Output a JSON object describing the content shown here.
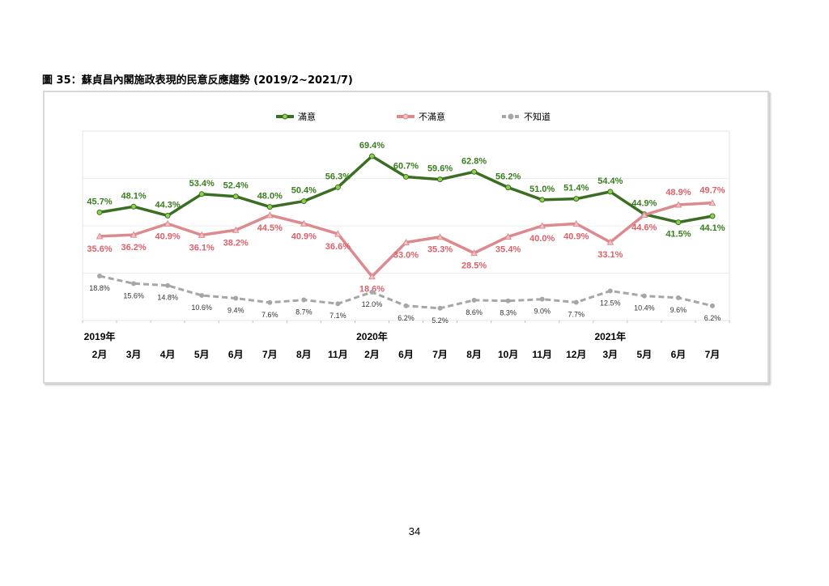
{
  "figure_title": "圖 35：蘇貞昌內閣施政表現的民意反應趨勢  (2019/2~2021/7)",
  "page_number": "34",
  "chart_data": {
    "type": "line",
    "title": "",
    "xlabel": "",
    "ylabel": "",
    "ylim": [
      0,
      80
    ],
    "grid": true,
    "legend_position": "top-center",
    "year_labels": [
      {
        "index": 0,
        "label": "2019年"
      },
      {
        "index": 8,
        "label": "2020年"
      },
      {
        "index": 15,
        "label": "2021年"
      }
    ],
    "categories": [
      "2月",
      "3月",
      "4月",
      "5月",
      "6月",
      "7月",
      "8月",
      "11月",
      "2月",
      "6月",
      "7月",
      "8月",
      "10月",
      "11月",
      "12月",
      "3月",
      "5月",
      "6月",
      "7月"
    ],
    "series": [
      {
        "name": "滿意",
        "color": "#3b6e22",
        "marker_color": "#8fd14f",
        "style": "solid",
        "values": [
          45.7,
          48.1,
          44.3,
          53.4,
          52.4,
          48.0,
          50.4,
          56.3,
          69.4,
          60.7,
          59.6,
          62.8,
          56.2,
          51.0,
          51.4,
          54.4,
          44.9,
          41.5,
          44.1
        ],
        "labels": [
          "45.7%",
          "48.1%",
          "44.3%",
          "53.4%",
          "52.4%",
          "48.0%",
          "50.4%",
          "56.3%",
          "69.4%",
          "60.7%",
          "59.6%",
          "62.8%",
          "56.2%",
          "51.0%",
          "51.4%",
          "54.4%",
          "44.9%",
          "41.5%",
          "44.1%"
        ]
      },
      {
        "name": "不滿意",
        "color": "#dd8a8f",
        "marker_color": "#f2c4c6",
        "style": "solid",
        "values": [
          35.6,
          36.2,
          40.9,
          36.1,
          38.2,
          44.5,
          40.9,
          36.6,
          18.6,
          33.0,
          35.3,
          28.5,
          35.4,
          40.0,
          40.9,
          33.1,
          44.6,
          48.9,
          49.7
        ],
        "labels": [
          "35.6%",
          "36.2%",
          "40.9%",
          "36.1%",
          "38.2%",
          "44.5%",
          "40.9%",
          "36.6%",
          "18.6%",
          "33.0%",
          "35.3%",
          "28.5%",
          "35.4%",
          "40.0%",
          "40.9%",
          "33.1%",
          "44.6%",
          "48.9%",
          "49.7%"
        ]
      },
      {
        "name": "不知道",
        "color": "#a6a6a6",
        "marker_color": "#a6a6a6",
        "style": "dashed",
        "values": [
          18.8,
          15.6,
          14.8,
          10.6,
          9.4,
          7.6,
          8.7,
          7.1,
          12.0,
          6.2,
          5.2,
          8.6,
          8.3,
          9.0,
          7.7,
          12.5,
          10.4,
          9.6,
          6.2
        ],
        "labels": [
          "18.8%",
          "15.6%",
          "14.8%",
          "10.6%",
          "9.4%",
          "7.6%",
          "8.7%",
          "7.1%",
          "12.0%",
          "6.2%",
          "5.2%",
          "8.6%",
          "8.3%",
          "9.0%",
          "7.7%",
          "12.5%",
          "10.4%",
          "9.6%",
          "6.2%"
        ]
      }
    ]
  }
}
